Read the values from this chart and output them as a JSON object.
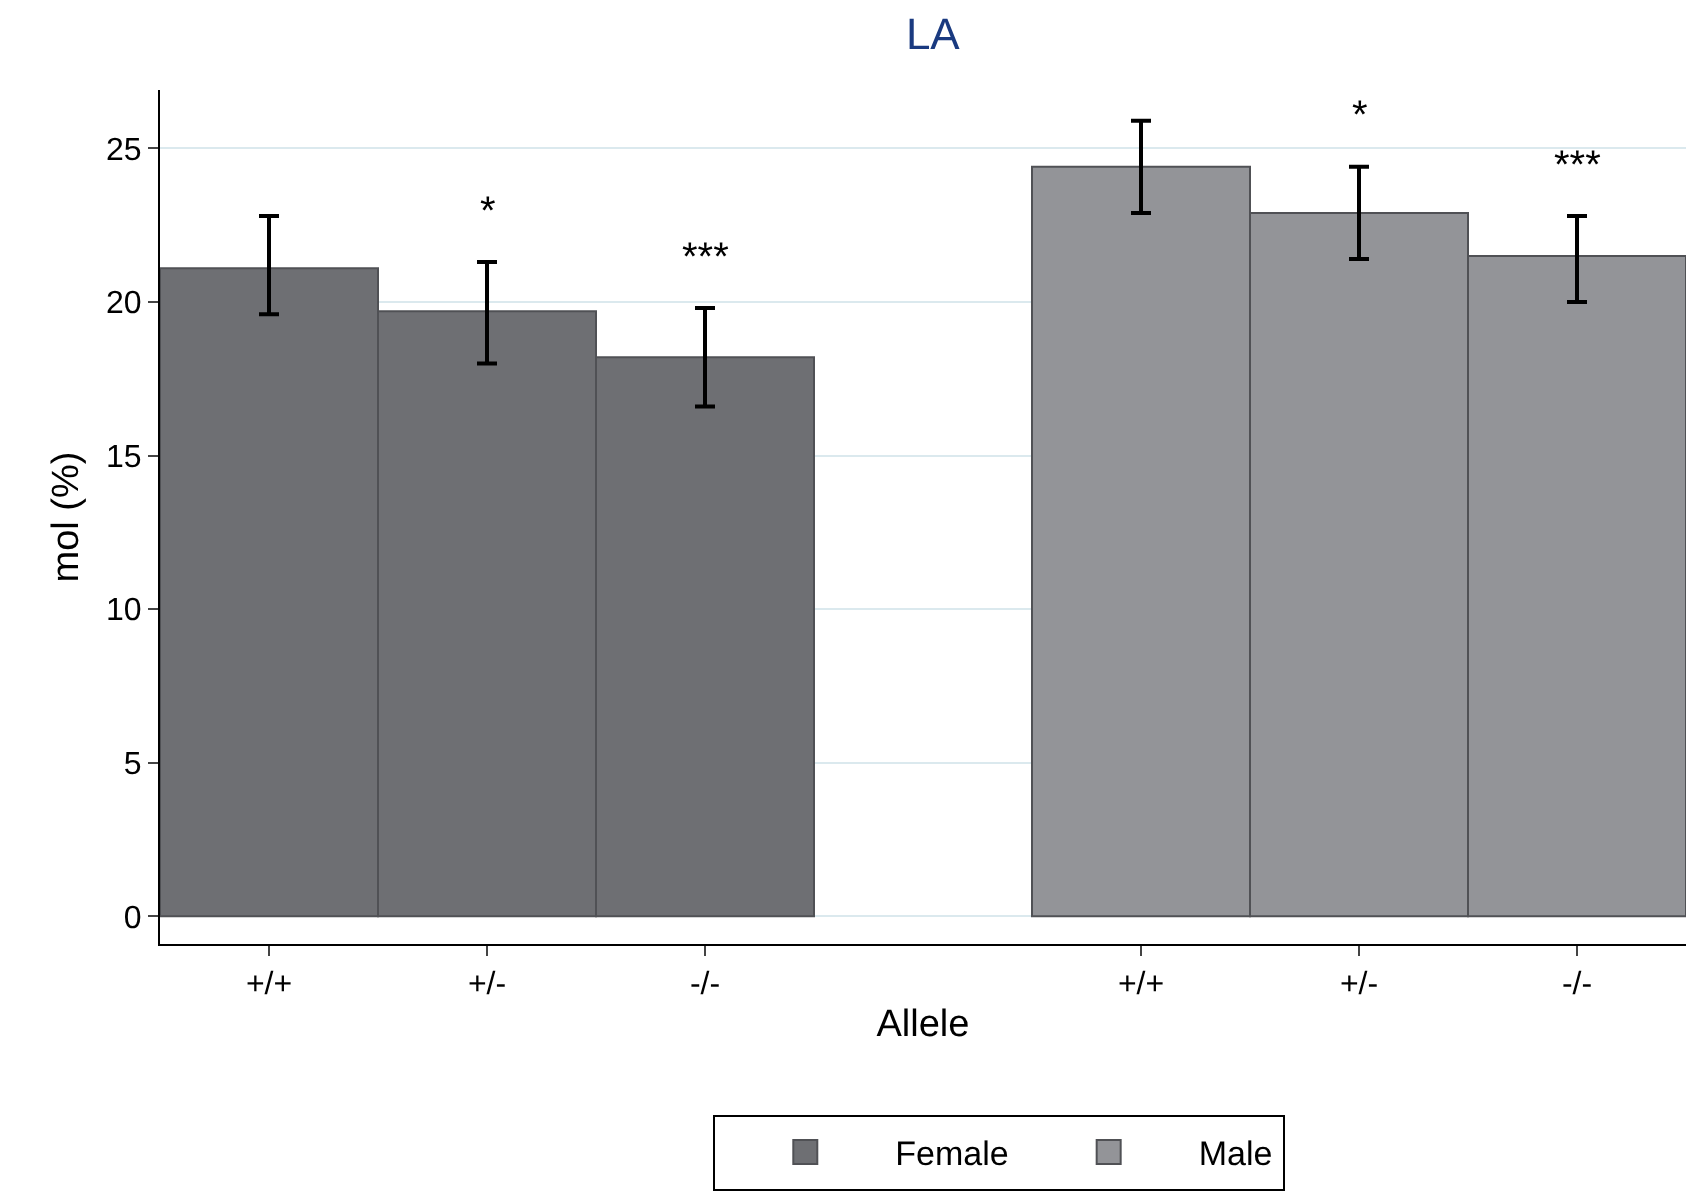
{
  "chart_data": {
    "type": "bar",
    "title": "LA",
    "xlabel": "Allele",
    "ylabel": "mol (%)",
    "categories": [
      "+/+",
      "+/-",
      "-/-",
      null,
      "+/+",
      "+/-",
      "-/-"
    ],
    "series": [
      {
        "name": "Female",
        "color": "#6e6f73",
        "values": [
          21.1,
          19.7,
          18.2,
          null,
          null,
          null,
          null
        ],
        "errors": [
          [
            19.6,
            22.8
          ],
          [
            18.0,
            21.3
          ],
          [
            16.6,
            19.8
          ],
          null,
          null,
          null,
          null
        ],
        "value_labels": [
          null,
          "*",
          "***",
          null,
          null,
          null,
          null
        ]
      },
      {
        "name": "Male",
        "color": "#939498",
        "values": [
          null,
          null,
          null,
          null,
          24.4,
          22.9,
          21.5
        ],
        "errors": [
          null,
          null,
          null,
          null,
          [
            22.9,
            25.9
          ],
          [
            21.4,
            24.4
          ],
          [
            20.0,
            22.8
          ]
        ],
        "value_labels": [
          null,
          null,
          null,
          null,
          null,
          "*",
          "***"
        ]
      }
    ],
    "ylim": [
      -0.9,
      26.9
    ],
    "yticks": [
      0,
      5,
      10,
      15,
      20,
      25
    ],
    "grid": "y",
    "legend": "bottom"
  }
}
